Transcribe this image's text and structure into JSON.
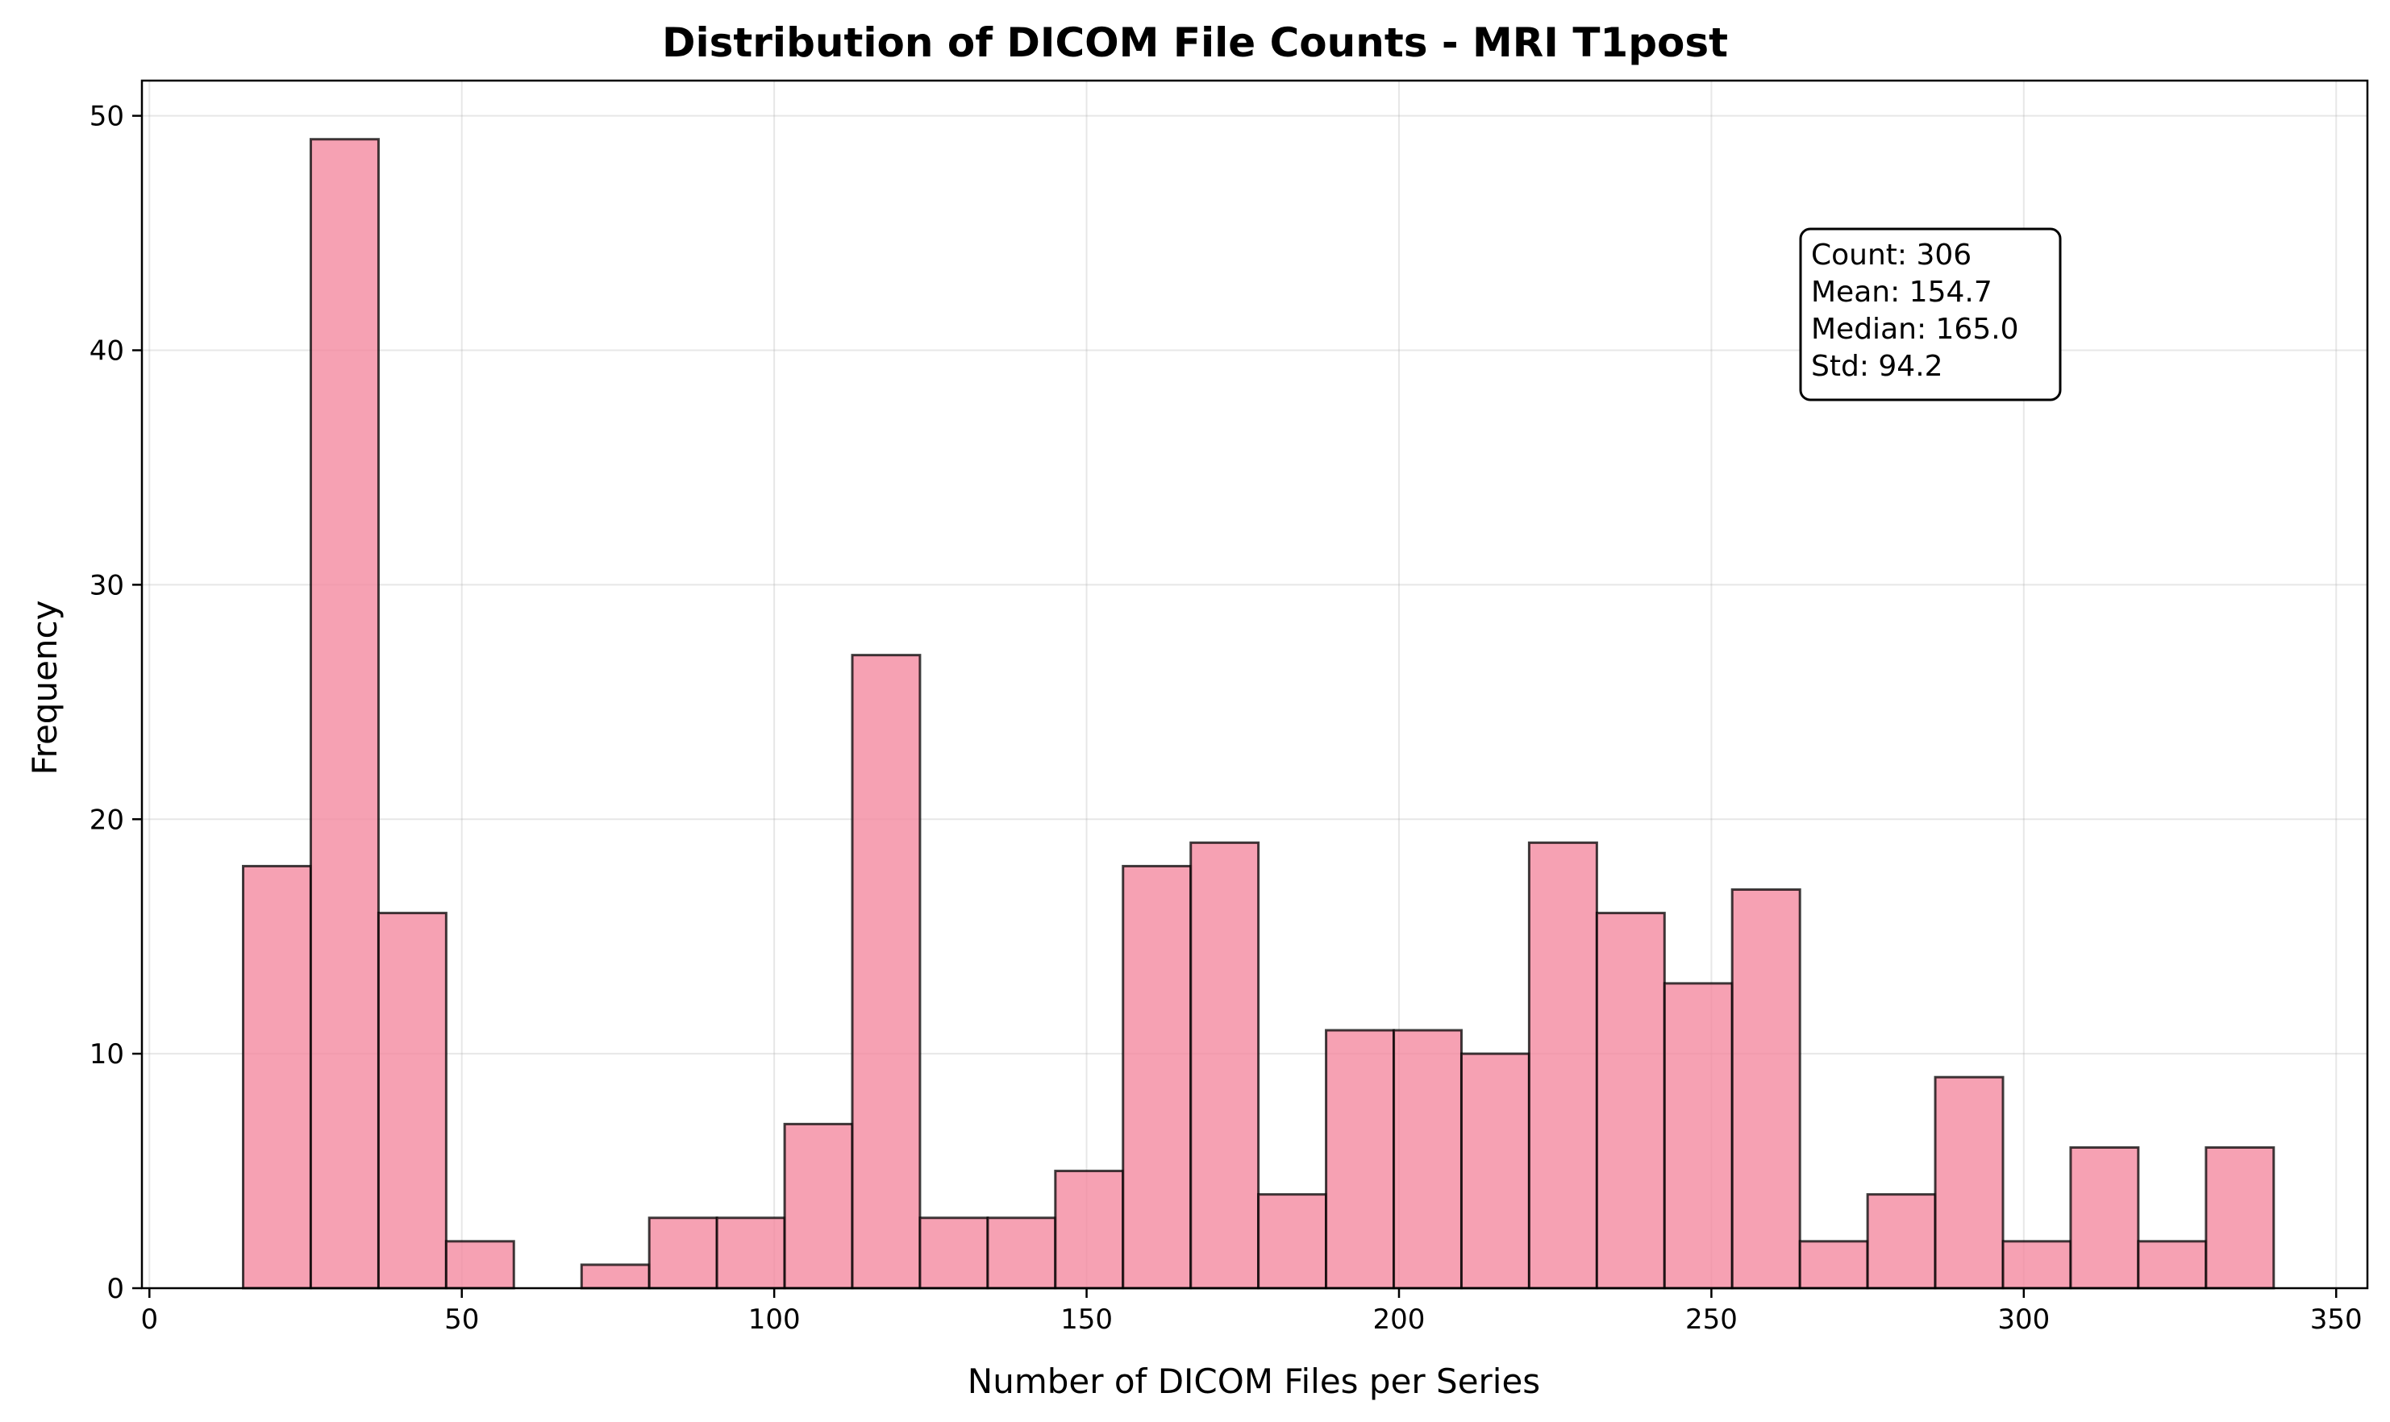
{
  "chart_data": {
    "type": "bar",
    "title": "Distribution of DICOM File Counts - MRI T1post",
    "xlabel": "Number of DICOM Files per Series",
    "ylabel": "Frequency",
    "xlim": [
      -1.2,
      355
    ],
    "ylim": [
      0,
      51.5
    ],
    "xticks": [
      0,
      50,
      100,
      150,
      200,
      250,
      300,
      350
    ],
    "yticks": [
      0,
      10,
      20,
      30,
      40,
      50
    ],
    "grid": true,
    "bar_color": "#f48aa0",
    "edge_color": "#000000",
    "bins": [
      {
        "x0": 15.0,
        "x1": 25.83,
        "count": 18
      },
      {
        "x0": 25.83,
        "x1": 36.67,
        "count": 49
      },
      {
        "x0": 36.67,
        "x1": 47.5,
        "count": 16
      },
      {
        "x0": 47.5,
        "x1": 58.33,
        "count": 2
      },
      {
        "x0": 58.33,
        "x1": 69.17,
        "count": 0
      },
      {
        "x0": 69.17,
        "x1": 80.0,
        "count": 1
      },
      {
        "x0": 80.0,
        "x1": 90.83,
        "count": 3
      },
      {
        "x0": 90.83,
        "x1": 101.67,
        "count": 3
      },
      {
        "x0": 101.67,
        "x1": 112.5,
        "count": 7
      },
      {
        "x0": 112.5,
        "x1": 123.33,
        "count": 27
      },
      {
        "x0": 123.33,
        "x1": 134.17,
        "count": 3
      },
      {
        "x0": 134.17,
        "x1": 145.0,
        "count": 3
      },
      {
        "x0": 145.0,
        "x1": 155.83,
        "count": 5
      },
      {
        "x0": 155.83,
        "x1": 166.67,
        "count": 18
      },
      {
        "x0": 166.67,
        "x1": 177.5,
        "count": 19
      },
      {
        "x0": 177.5,
        "x1": 188.33,
        "count": 4
      },
      {
        "x0": 188.33,
        "x1": 199.17,
        "count": 11
      },
      {
        "x0": 199.17,
        "x1": 210.0,
        "count": 11
      },
      {
        "x0": 210.0,
        "x1": 220.83,
        "count": 10
      },
      {
        "x0": 220.83,
        "x1": 231.67,
        "count": 19
      },
      {
        "x0": 231.67,
        "x1": 242.5,
        "count": 16
      },
      {
        "x0": 242.5,
        "x1": 253.33,
        "count": 13
      },
      {
        "x0": 253.33,
        "x1": 264.17,
        "count": 17
      },
      {
        "x0": 264.17,
        "x1": 275.0,
        "count": 2
      },
      {
        "x0": 275.0,
        "x1": 285.83,
        "count": 4
      },
      {
        "x0": 285.83,
        "x1": 296.67,
        "count": 9
      },
      {
        "x0": 296.67,
        "x1": 307.5,
        "count": 2
      },
      {
        "x0": 307.5,
        "x1": 318.33,
        "count": 6
      },
      {
        "x0": 318.33,
        "x1": 329.17,
        "count": 2
      },
      {
        "x0": 329.17,
        "x1": 340.0,
        "count": 6
      }
    ],
    "stats_box": {
      "placement": "top-right",
      "lines": [
        "Count: 306",
        "Mean: 154.7",
        "Median: 165.0",
        "Std: 94.2"
      ]
    }
  }
}
